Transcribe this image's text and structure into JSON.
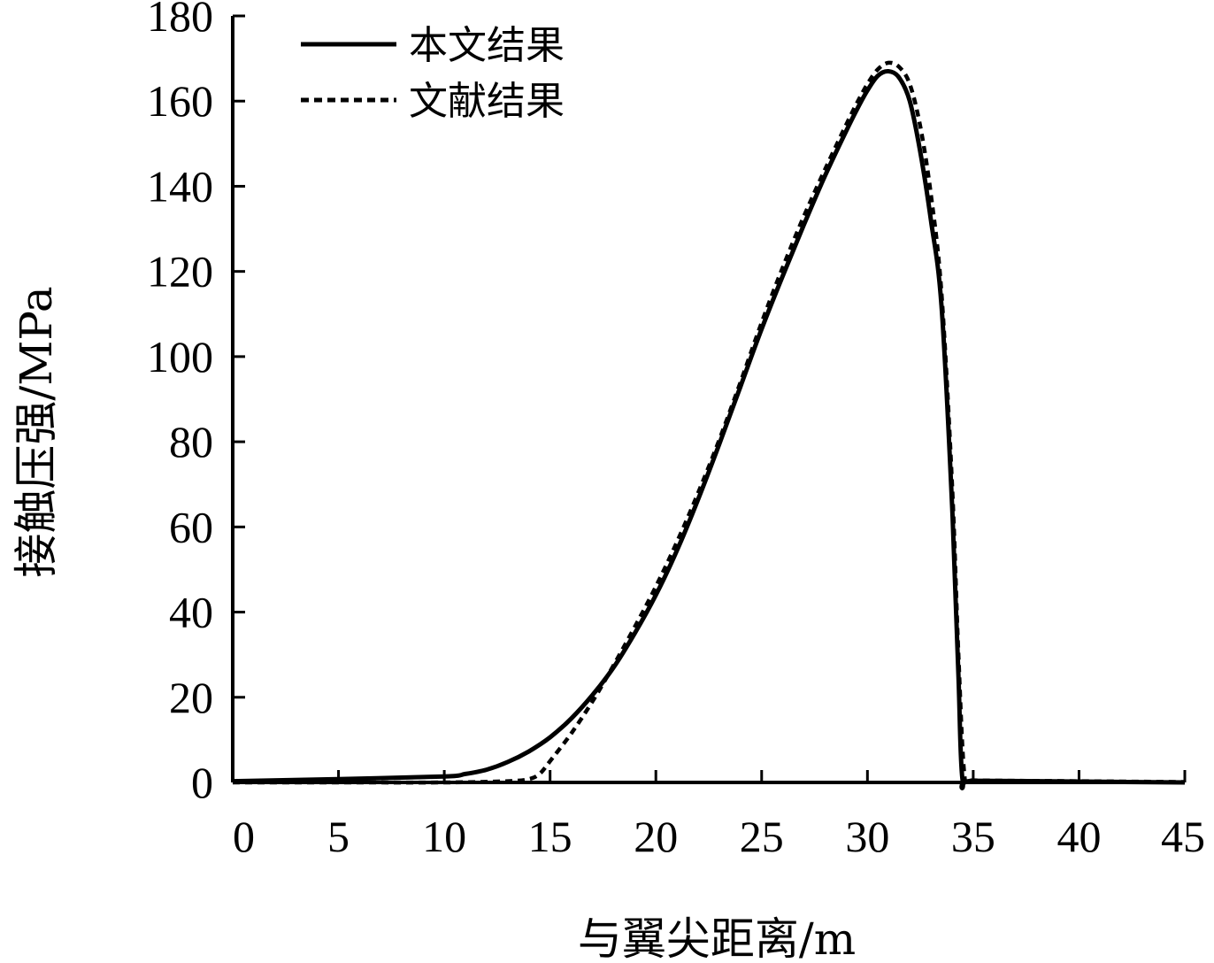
{
  "chart_data": {
    "type": "line",
    "xlabel": "与翼尖距离/m",
    "ylabel": "接触压强/MPa",
    "xlim": [
      0,
      45
    ],
    "ylim": [
      0,
      180
    ],
    "x_ticks": [
      "0",
      "5",
      "10",
      "15",
      "20",
      "25",
      "30",
      "35",
      "40",
      "45"
    ],
    "y_ticks": [
      "0",
      "20",
      "40",
      "60",
      "80",
      "100",
      "120",
      "140",
      "160",
      "180"
    ],
    "grid": false,
    "legend_position": "top-left",
    "series": [
      {
        "name": "本文结果",
        "style": "solid",
        "color": "#000000",
        "x": [
          0,
          5,
          10,
          11,
          12,
          13,
          14,
          15,
          16,
          17,
          18,
          19,
          20,
          21,
          22,
          23,
          24,
          25,
          26,
          27,
          28,
          29,
          29.5,
          30,
          30.5,
          31,
          31.5,
          32,
          32.5,
          33,
          33.5,
          34,
          34.3,
          34.5,
          35,
          40,
          45
        ],
        "y": [
          0.3,
          0.8,
          1.4,
          2.0,
          3.0,
          4.8,
          7.3,
          10.6,
          15.0,
          20.5,
          27.0,
          35.0,
          44.0,
          54.5,
          66.5,
          79.5,
          93.0,
          106.5,
          119.0,
          131.0,
          142.5,
          153.0,
          158.0,
          162.5,
          166.0,
          167.0,
          165.5,
          160.0,
          148.0,
          132.0,
          112.0,
          65.0,
          25.0,
          0.5,
          0.4,
          0.2,
          0.0
        ]
      },
      {
        "name": "文献结果",
        "style": "dotted",
        "color": "#000000",
        "x": [
          0,
          5,
          10,
          13,
          14,
          14.5,
          15,
          16,
          17,
          18,
          19,
          20,
          21,
          22,
          23,
          24,
          25,
          26,
          27,
          28,
          29,
          29.5,
          30,
          30.5,
          31,
          31.5,
          32,
          32.5,
          33,
          33.5,
          34,
          34.3,
          34.6,
          35,
          40,
          45
        ],
        "y": [
          0,
          0,
          0,
          0.3,
          0.8,
          2.0,
          5.0,
          11.5,
          19.0,
          27.5,
          36.5,
          46.0,
          56.5,
          68.0,
          80.5,
          94.0,
          108.0,
          121.0,
          133.0,
          144.0,
          154.5,
          159.5,
          164.0,
          167.5,
          169.0,
          168.0,
          164.0,
          154.0,
          138.0,
          115.0,
          70.0,
          30.0,
          1.0,
          0.5,
          0.3,
          0.1
        ]
      }
    ]
  }
}
